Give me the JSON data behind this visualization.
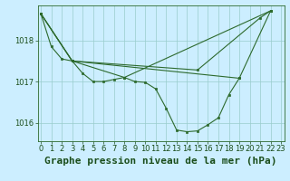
{
  "title": "Graphe pression niveau de la mer (hPa)",
  "bg_color": "#cceeff",
  "line_color": "#2d6a2d",
  "grid_color": "#99cccc",
  "text_color": "#1a4d1a",
  "xlim": [
    -0.3,
    23.3
  ],
  "ylim": [
    1015.55,
    1018.85
  ],
  "yticks": [
    1016,
    1017,
    1018
  ],
  "xticks": [
    0,
    1,
    2,
    3,
    4,
    5,
    6,
    7,
    8,
    9,
    10,
    11,
    12,
    13,
    14,
    15,
    16,
    17,
    18,
    19,
    20,
    21,
    22,
    23
  ],
  "series1_x": [
    0,
    1,
    2,
    3,
    4,
    5,
    6,
    7,
    8,
    9,
    10,
    11,
    12,
    13,
    14,
    15,
    16,
    17,
    18,
    19
  ],
  "series1_y": [
    1018.65,
    1017.85,
    1017.55,
    1017.5,
    1017.2,
    1017.0,
    1017.0,
    1017.05,
    1017.1,
    1017.0,
    1016.98,
    1016.82,
    1016.35,
    1015.82,
    1015.78,
    1015.8,
    1015.95,
    1016.12,
    1016.68,
    1017.08
  ],
  "series2_x": [
    0,
    3,
    15,
    21,
    22
  ],
  "series2_y": [
    1018.65,
    1017.5,
    1017.28,
    1018.55,
    1018.72
  ],
  "series3_x": [
    0,
    3,
    19,
    22
  ],
  "series3_y": [
    1018.65,
    1017.5,
    1017.08,
    1018.72
  ],
  "series4_x": [
    0,
    3,
    8,
    22
  ],
  "series4_y": [
    1018.65,
    1017.5,
    1017.1,
    1018.72
  ],
  "title_fontsize": 8,
  "tick_fontsize": 6
}
